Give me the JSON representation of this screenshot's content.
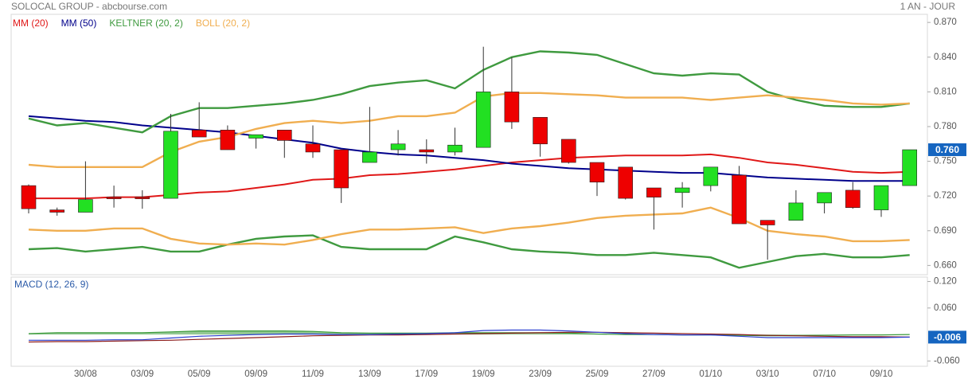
{
  "chart_data": [
    {
      "type": "candlestick",
      "title": "SOLOCAL GROUP - abcbourse.com",
      "period": "1 AN - JOUR",
      "categories": [
        null,
        null,
        "30/08",
        null,
        "03/09",
        null,
        "05/09",
        null,
        "09/09",
        null,
        "11/09",
        null,
        "13/09",
        null,
        "17/09",
        null,
        "19/09",
        null,
        "23/09",
        null,
        "25/09",
        null,
        "27/09",
        null,
        "01/10",
        null,
        "03/10",
        null,
        "07/10",
        null,
        "09/10",
        null
      ],
      "open": [
        0.729,
        0.708,
        0.706,
        0.719,
        0.719,
        0.718,
        0.777,
        0.777,
        0.77,
        0.777,
        0.765,
        0.76,
        0.749,
        0.76,
        0.76,
        0.758,
        0.762,
        0.81,
        0.788,
        0.769,
        0.749,
        0.745,
        0.727,
        0.723,
        0.729,
        0.738,
        0.699,
        0.699,
        0.714,
        0.725,
        0.708,
        0.729
      ],
      "high": [
        0.73,
        0.71,
        0.75,
        0.729,
        0.725,
        0.791,
        0.801,
        0.781,
        0.773,
        0.777,
        0.781,
        0.76,
        0.797,
        0.777,
        0.769,
        0.779,
        0.849,
        0.84,
        0.788,
        0.769,
        0.749,
        0.745,
        0.727,
        0.732,
        0.745,
        0.746,
        0.699,
        0.725,
        0.723,
        0.732,
        0.729,
        0.76
      ],
      "low": [
        0.705,
        0.703,
        0.706,
        0.71,
        0.709,
        0.718,
        0.771,
        0.76,
        0.761,
        0.753,
        0.753,
        0.714,
        0.749,
        0.755,
        0.748,
        0.755,
        0.762,
        0.778,
        0.754,
        0.748,
        0.72,
        0.717,
        0.691,
        0.71,
        0.724,
        0.696,
        0.665,
        0.699,
        0.705,
        0.709,
        0.702,
        0.729
      ],
      "close": [
        0.709,
        0.706,
        0.717,
        0.718,
        0.718,
        0.776,
        0.771,
        0.76,
        0.773,
        0.768,
        0.758,
        0.727,
        0.758,
        0.765,
        0.758,
        0.764,
        0.81,
        0.784,
        0.765,
        0.749,
        0.732,
        0.718,
        0.719,
        0.727,
        0.745,
        0.696,
        0.695,
        0.714,
        0.723,
        0.71,
        0.729,
        0.76
      ],
      "close_label": "0.760",
      "up_color": "#22e022",
      "down_color": "#ee0000",
      "series": [
        {
          "name": "MM (20)",
          "color": "#e01818",
          "values": [
            0.718,
            0.718,
            0.718,
            0.719,
            0.719,
            0.721,
            0.723,
            0.724,
            0.727,
            0.73,
            0.734,
            0.735,
            0.738,
            0.739,
            0.741,
            0.743,
            0.746,
            0.749,
            0.751,
            0.753,
            0.754,
            0.755,
            0.755,
            0.755,
            0.756,
            0.753,
            0.749,
            0.747,
            0.744,
            0.741,
            0.74,
            0.741
          ]
        },
        {
          "name": "MM (50)",
          "color": "#00008b",
          "values": [
            0.789,
            0.787,
            0.785,
            0.784,
            0.781,
            0.779,
            0.777,
            0.775,
            0.772,
            0.769,
            0.766,
            0.761,
            0.758,
            0.756,
            0.755,
            0.753,
            0.751,
            0.748,
            0.746,
            0.744,
            0.743,
            0.742,
            0.741,
            0.74,
            0.74,
            0.738,
            0.736,
            0.735,
            0.734,
            0.733,
            0.733,
            0.733
          ]
        },
        {
          "name": "KELTNER (20, 2)",
          "color": "#3f9a3f",
          "upper": [
            0.787,
            0.781,
            0.783,
            0.779,
            0.775,
            0.789,
            0.796,
            0.796,
            0.798,
            0.8,
            0.803,
            0.808,
            0.815,
            0.818,
            0.82,
            0.813,
            0.829,
            0.84,
            0.845,
            0.844,
            0.842,
            0.834,
            0.826,
            0.824,
            0.826,
            0.825,
            0.81,
            0.803,
            0.798,
            0.797,
            0.797,
            0.8
          ],
          "lower": [
            0.674,
            0.675,
            0.672,
            0.674,
            0.676,
            0.672,
            0.672,
            0.678,
            0.683,
            0.685,
            0.686,
            0.676,
            0.674,
            0.674,
            0.674,
            0.685,
            0.68,
            0.674,
            0.672,
            0.671,
            0.669,
            0.669,
            0.671,
            0.669,
            0.667,
            0.658,
            0.663,
            0.668,
            0.67,
            0.667,
            0.667,
            0.669
          ]
        },
        {
          "name": "BOLL (20, 2)",
          "color": "#f0ae50",
          "upper": [
            0.747,
            0.745,
            0.745,
            0.745,
            0.745,
            0.758,
            0.767,
            0.771,
            0.778,
            0.783,
            0.785,
            0.783,
            0.785,
            0.789,
            0.789,
            0.792,
            0.806,
            0.809,
            0.809,
            0.808,
            0.807,
            0.805,
            0.805,
            0.805,
            0.803,
            0.805,
            0.807,
            0.805,
            0.803,
            0.8,
            0.799,
            0.8
          ],
          "lower": [
            0.691,
            0.69,
            0.69,
            0.692,
            0.692,
            0.683,
            0.679,
            0.678,
            0.679,
            0.678,
            0.682,
            0.687,
            0.691,
            0.691,
            0.692,
            0.693,
            0.688,
            0.692,
            0.694,
            0.697,
            0.701,
            0.703,
            0.704,
            0.705,
            0.71,
            0.701,
            0.69,
            0.687,
            0.685,
            0.681,
            0.681,
            0.682
          ]
        }
      ],
      "ylim": [
        0.652,
        0.877
      ],
      "yticks": [
        {
          "value": 0.66,
          "label": "0.660"
        },
        {
          "value": 0.69,
          "label": "0.690"
        },
        {
          "value": 0.72,
          "label": "0.720"
        },
        {
          "value": 0.75,
          "label": "0.750"
        },
        {
          "value": 0.78,
          "label": "0.780"
        },
        {
          "value": 0.81,
          "label": "0.810"
        },
        {
          "value": 0.84,
          "label": "0.840"
        },
        {
          "value": 0.87,
          "label": "0.870"
        }
      ]
    },
    {
      "type": "line",
      "title": "MACD (12, 26, 9)",
      "series": [
        {
          "color": "#3a9a3a",
          "fill": true,
          "values": [
            0.002,
            0.004,
            0.004,
            0.004,
            0.004,
            0.006,
            0.008,
            0.008,
            0.008,
            0.008,
            0.007,
            0.004,
            0.003,
            0.003,
            0.003,
            0.004,
            0.004,
            0.004,
            0.004,
            0.003,
            0.001,
            0,
            0,
            -0.001,
            -0.001,
            -0.002,
            -0.003,
            -0.003,
            -0.002,
            -0.001,
            -0.001,
            0
          ]
        },
        {
          "color": "#8b1a1a",
          "values": [
            -0.017,
            -0.016,
            -0.016,
            -0.015,
            -0.014,
            -0.013,
            -0.011,
            -0.009,
            -0.007,
            -0.005,
            -0.003,
            -0.002,
            -0.001,
            -0.001,
            0,
            0.001,
            0.002,
            0.003,
            0.004,
            0.005,
            0.005,
            0.004,
            0.003,
            0.002,
            0.001,
            0,
            -0.002,
            -0.003,
            -0.004,
            -0.005,
            -0.005,
            -0.006
          ]
        },
        {
          "color": "#2a3fd0",
          "values": [
            -0.013,
            -0.013,
            -0.013,
            -0.012,
            -0.012,
            -0.008,
            -0.004,
            -0.002,
            0,
            0.001,
            0.001,
            0,
            0,
            0.001,
            0.002,
            0.004,
            0.009,
            0.01,
            0.01,
            0.008,
            0.005,
            0.002,
            0,
            -0.001,
            -0.001,
            -0.004,
            -0.007,
            -0.007,
            -0.007,
            -0.007,
            -0.007,
            -0.006
          ]
        }
      ],
      "ylim": [
        -0.072,
        0.13
      ],
      "yticks": [
        {
          "value": -0.06,
          "label": "-0.060"
        },
        {
          "value": 0.06,
          "label": "0.060"
        },
        {
          "value": 0.12,
          "label": "0.120"
        }
      ]
    }
  ]
}
